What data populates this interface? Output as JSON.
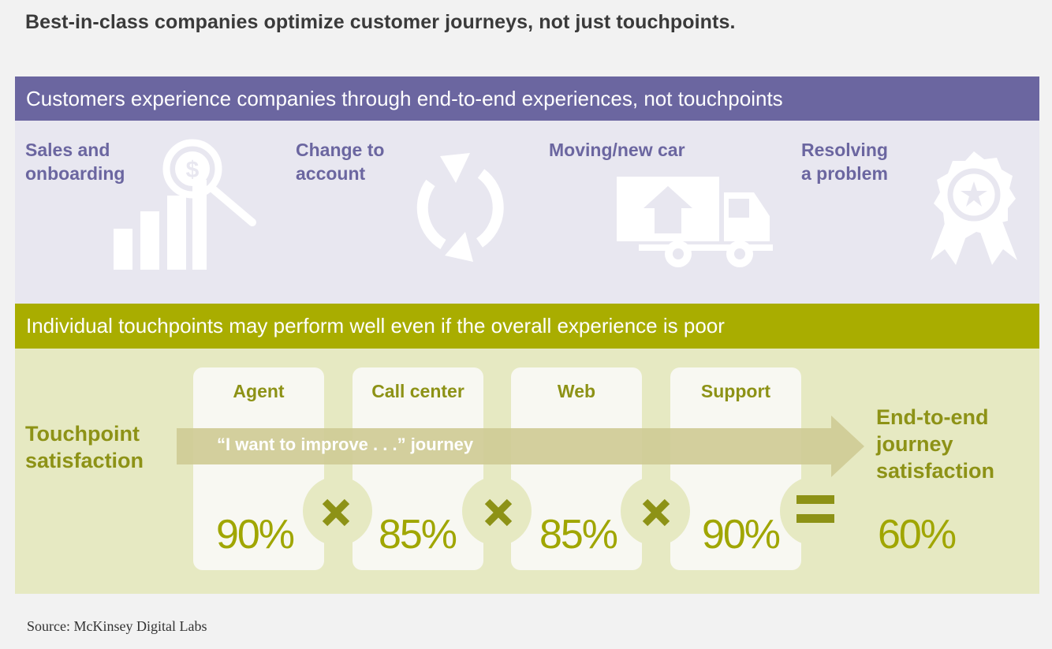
{
  "title": "Best-in-class companies optimize customer journeys, not just touchpoints.",
  "journeys_section": {
    "header": "Customers experience companies through end-to-end experiences, not touchpoints",
    "items": [
      {
        "line1": "Sales and",
        "line2": "onboarding",
        "icon": "sales-chart-magnifier-icon"
      },
      {
        "line1": "Change to",
        "line2": "account",
        "icon": "refresh-cycle-icon"
      },
      {
        "line1": "Moving/new car",
        "line2": "",
        "icon": "moving-truck-icon"
      },
      {
        "line1": "Resolving",
        "line2": "a problem",
        "icon": "award-ribbon-icon"
      }
    ]
  },
  "touchpoints_section": {
    "header": "Individual touchpoints may perform well even if the overall experience is poor",
    "row_label_line1": "Touchpoint",
    "row_label_line2": "satisfaction",
    "arrow_text": "“I want to improve . . .” journey",
    "cards": [
      {
        "title": "Agent",
        "value": "90%"
      },
      {
        "title": "Call center",
        "value": "85%"
      },
      {
        "title": "Web",
        "value": "85%"
      },
      {
        "title": "Support",
        "value": "90%"
      }
    ],
    "result_label_line1": "End-to-end",
    "result_label_line2": "journey",
    "result_label_line3": "satisfaction",
    "result_value": "60%"
  },
  "source": "Source: McKinsey Digital Labs",
  "colors": {
    "purple": "#6b66a0",
    "purple_light": "#e8e7f0",
    "olive": "#a9ad00",
    "olive_light": "#e6e9c2",
    "olive_text": "#8d9216"
  }
}
